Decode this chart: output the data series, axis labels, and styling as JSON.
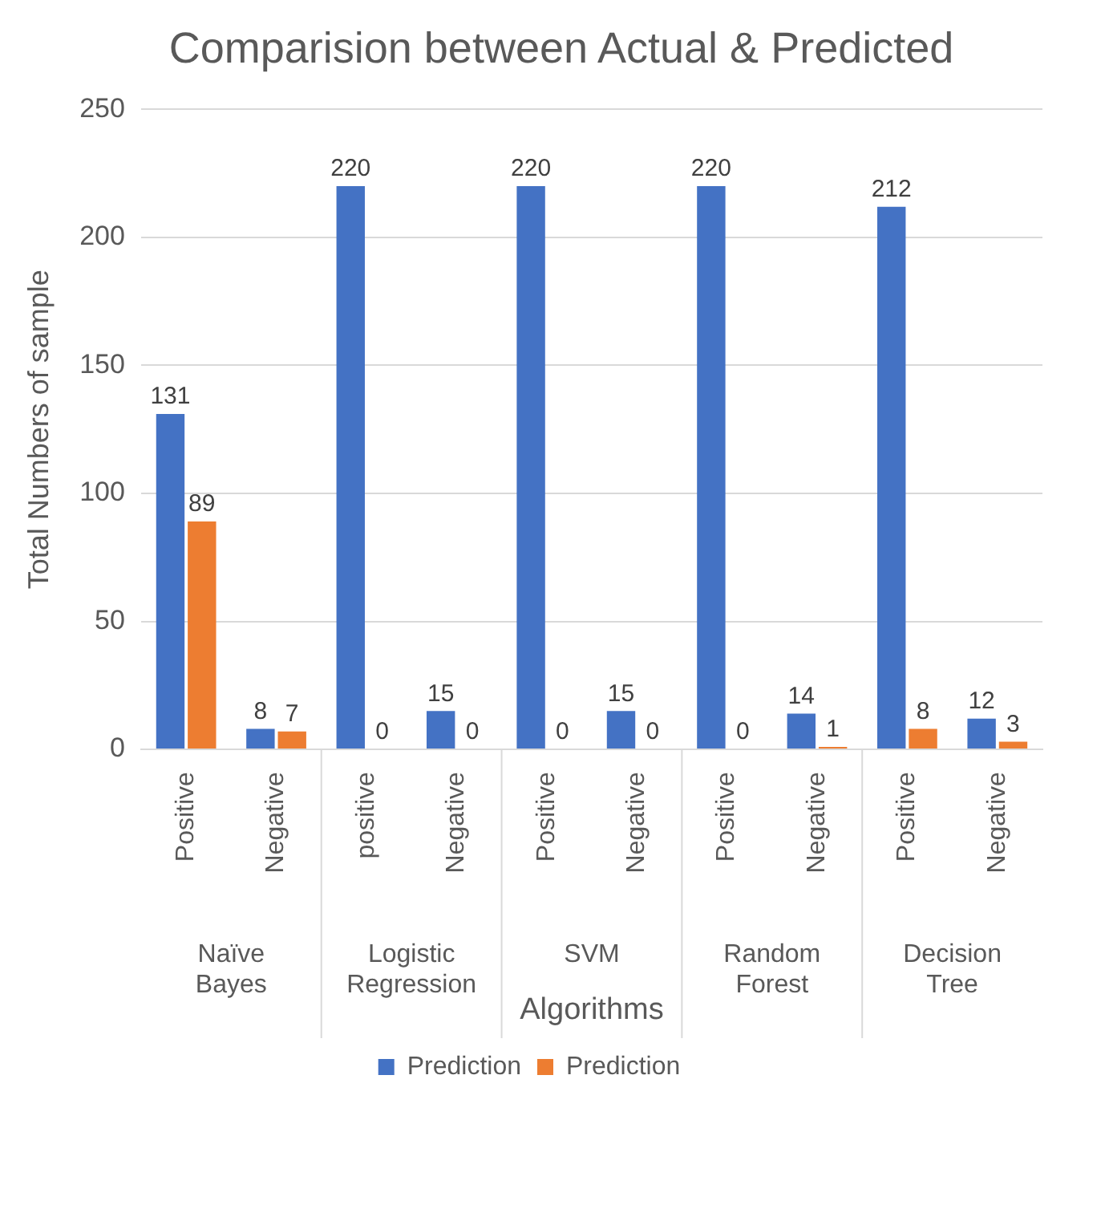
{
  "chart_data": {
    "type": "bar",
    "title": "Comparision between Actual & Predicted",
    "xlabel": "Algorithms",
    "ylabel": "Total Numbers of sample",
    "categories": [
      "Positive",
      "Negative",
      "positive",
      "Negative",
      "Positive",
      "Negative",
      "Positive",
      "Negative",
      "Positive",
      "Negative"
    ],
    "annotations": [
      "Naïve Bayes",
      "Logistic Regression",
      "SVM",
      "Random Forest",
      "Decision Tree"
    ],
    "series": [
      {
        "name": "Prediction",
        "color": "#4472c4",
        "values": [
          131,
          8,
          220,
          15,
          220,
          15,
          220,
          14,
          212,
          12
        ]
      },
      {
        "name": "Prediction",
        "color": "#ed7d31",
        "values": [
          89,
          7,
          0,
          0,
          0,
          0,
          0,
          1,
          8,
          3
        ]
      }
    ],
    "ylim": [
      0,
      250
    ],
    "yticks": [
      0,
      50,
      100,
      150,
      200,
      250
    ],
    "grid": "y",
    "legend": "bottom",
    "data_labels": true
  }
}
